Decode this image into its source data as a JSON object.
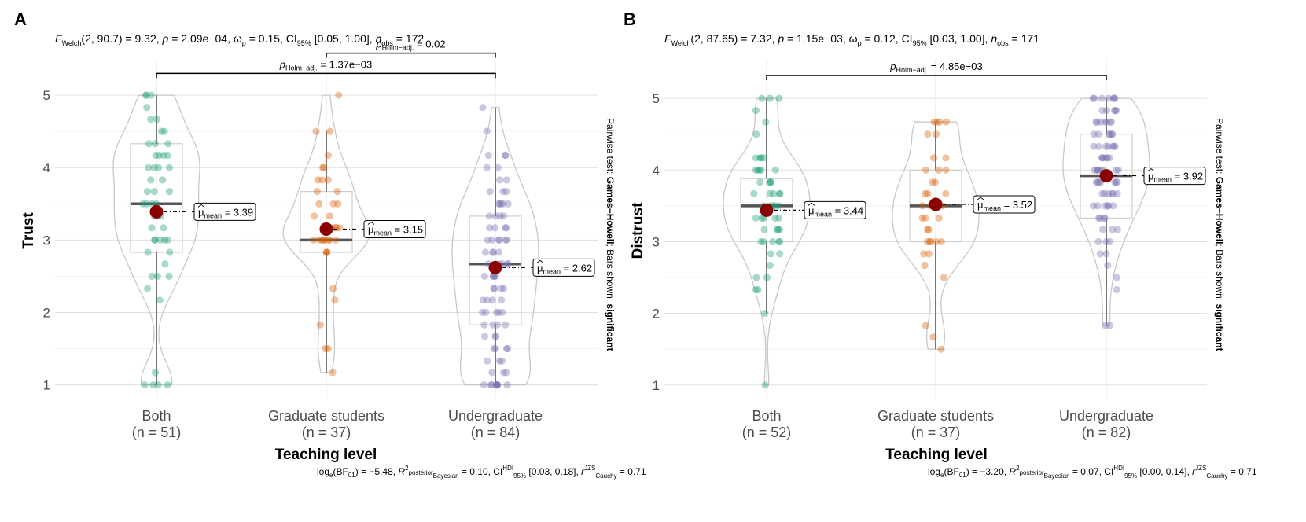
{
  "chart_data": [
    {
      "type": "violin-box-scatter",
      "panel_label": "A",
      "subtitle": {
        "stat": "F",
        "stat_sub": "Welch",
        "rest1": "(2, 90.7) = 9.32, ",
        "p": "p",
        "rest2": " = 2.09e−04, ",
        "omega": "ω",
        "omega_sup": "2",
        "omega_sub": "p",
        "rest3": " = 0.15, CI",
        "ci_sub": "95%",
        "rest4": " [0.05, 1.00], ",
        "n": "n",
        "n_sub": "obs",
        "rest5": " = 172"
      },
      "ylabel": "Trust",
      "xlabel": "Teaching level",
      "ylim": [
        0.8,
        5.5
      ],
      "yticks": [
        1,
        2,
        3,
        4,
        5
      ],
      "groups": [
        {
          "name": "Both",
          "n_label": "(n = 51)",
          "color": "#1b9e77",
          "mean": 3.39,
          "mean_label": "3.39",
          "median": 3.5,
          "q1": 2.83,
          "q3": 4.33,
          "wlo": 1.0,
          "whi": 5.0,
          "points": [
            1,
            1,
            1,
            1,
            1.17,
            2.17,
            2.33,
            2.5,
            2.5,
            2.5,
            2.67,
            2.83,
            2.83,
            3,
            3,
            3,
            3,
            3,
            3.17,
            3.17,
            3.33,
            3.33,
            3.33,
            3.5,
            3.5,
            3.5,
            3.5,
            3.67,
            3.67,
            3.67,
            3.83,
            3.83,
            4,
            4,
            4,
            4,
            4.17,
            4.17,
            4.17,
            4.17,
            4.33,
            4.33,
            4.33,
            4.5,
            4.5,
            4.67,
            4.67,
            4.83,
            5,
            5,
            5
          ]
        },
        {
          "name": "Graduate students",
          "n_label": "(n = 37)",
          "color": "#d95f02",
          "mean": 3.15,
          "mean_label": "3.15",
          "median": 3.0,
          "q1": 2.83,
          "q3": 3.67,
          "wlo": 1.17,
          "whi": 4.5,
          "points": [
            1.17,
            1.5,
            1.5,
            1.83,
            2.17,
            2.33,
            2.83,
            2.83,
            2.83,
            3,
            3,
            3,
            3,
            3,
            3,
            3,
            3,
            3.17,
            3.17,
            3.17,
            3.17,
            3.33,
            3.33,
            3.5,
            3.5,
            3.5,
            3.67,
            3.67,
            3.83,
            3.83,
            3.83,
            4,
            4,
            4.17,
            4.5,
            4.5,
            5
          ]
        },
        {
          "name": "Undergraduate",
          "n_label": "(n = 84)",
          "color": "#7570b3",
          "mean": 2.62,
          "mean_label": "2.62",
          "median": 2.67,
          "q1": 1.83,
          "q3": 3.33,
          "wlo": 1.0,
          "whi": 4.83,
          "points": [
            1,
            1,
            1,
            1,
            1,
            1,
            1,
            1,
            1,
            1.17,
            1.17,
            1.17,
            1.33,
            1.33,
            1.33,
            1.5,
            1.5,
            1.5,
            1.5,
            1.67,
            1.67,
            1.67,
            1.83,
            1.83,
            1.83,
            1.83,
            2,
            2,
            2,
            2,
            2,
            2.17,
            2.17,
            2.17,
            2.17,
            2.33,
            2.33,
            2.33,
            2.33,
            2.5,
            2.5,
            2.5,
            2.5,
            2.5,
            2.67,
            2.67,
            2.67,
            2.67,
            2.67,
            2.83,
            2.83,
            2.83,
            2.83,
            3,
            3,
            3,
            3,
            3,
            3,
            3.17,
            3.17,
            3.17,
            3.17,
            3.33,
            3.33,
            3.33,
            3.33,
            3.5,
            3.5,
            3.5,
            3.5,
            3.67,
            3.67,
            3.67,
            3.83,
            3.83,
            4,
            4,
            4.17,
            4.17,
            4.17,
            4.5,
            4.83,
            3.5
          ]
        }
      ],
      "comparisons": [
        {
          "from": 1,
          "to": 2,
          "p_sym": "p",
          "p_sub": "Holm−adj.",
          "value": " = 0.02",
          "y": 5.58
        },
        {
          "from": 0,
          "to": 2,
          "p_sym": "p",
          "p_sub": "Holm−adj.",
          "value": " = 1.37e−03",
          "y": 5.3
        }
      ],
      "side_note": {
        "pre": "Pairwise test: ",
        "bold1": "Games−Howell",
        "mid": "; Bars shown: ",
        "bold2": "significant"
      },
      "footer": {
        "a": "log",
        "a_sub": "e",
        "b": "(BF",
        "b_sub": "01",
        "c": ") = −5.48, ",
        "r": "R",
        "r_sup": "2",
        "r_sup2": "posterior",
        "r_sub": "Bayesian",
        "d": " = 0.10, CI",
        "d_sup": "HDI",
        "d_sub": "95%",
        "e": " [0.03, 0.18], ",
        "rc": "r",
        "rc_sup": "JZS",
        "rc_sub": "Cauchy",
        "f": " = 0.71"
      },
      "mean_prefix": "μ",
      "mean_sub": "mean"
    },
    {
      "type": "violin-box-scatter",
      "panel_label": "B",
      "subtitle": {
        "stat": "F",
        "stat_sub": "Welch",
        "rest1": "(2, 87.65) = 7.32, ",
        "p": "p",
        "rest2": " = 1.15e−03, ",
        "omega": "ω",
        "omega_sup": "2",
        "omega_sub": "p",
        "rest3": " = 0.12, CI",
        "ci_sub": "95%",
        "rest4": " [0.03, 1.00], ",
        "n": "n",
        "n_sub": "obs",
        "rest5": " = 171"
      },
      "ylabel": "Distrust",
      "xlabel": "Teaching level",
      "ylim": [
        0.8,
        5.55
      ],
      "yticks": [
        1,
        2,
        3,
        4,
        5
      ],
      "groups": [
        {
          "name": "Both",
          "n_label": "(n = 52)",
          "color": "#1b9e77",
          "mean": 3.44,
          "mean_label": "3.44",
          "median": 3.5,
          "q1": 3.0,
          "q3": 3.88,
          "wlo": 2.0,
          "whi": 5.0,
          "points": [
            1,
            2,
            2.33,
            2.33,
            2.5,
            2.5,
            2.67,
            2.83,
            2.83,
            3,
            3,
            3,
            3,
            3,
            3.17,
            3.17,
            3.17,
            3.17,
            3.33,
            3.33,
            3.33,
            3.33,
            3.33,
            3.5,
            3.5,
            3.5,
            3.5,
            3.5,
            3.67,
            3.67,
            3.67,
            3.67,
            3.67,
            3.83,
            3.83,
            3.83,
            3.83,
            4,
            4,
            4,
            4,
            4,
            4.17,
            4.17,
            4.17,
            4.17,
            4.5,
            4.67,
            4.83,
            5,
            5,
            5
          ]
        },
        {
          "name": "Graduate students",
          "n_label": "(n = 37)",
          "color": "#d95f02",
          "mean": 3.52,
          "mean_label": "3.52",
          "median": 3.5,
          "q1": 3.0,
          "q3": 4.0,
          "wlo": 1.5,
          "whi": 4.67,
          "points": [
            1.5,
            1.67,
            1.83,
            2.5,
            2.67,
            2.83,
            2.83,
            3,
            3,
            3,
            3,
            3,
            3.17,
            3.17,
            3.33,
            3.33,
            3.33,
            3.5,
            3.5,
            3.5,
            3.5,
            3.67,
            3.67,
            3.67,
            3.83,
            3.83,
            4,
            4,
            4,
            4.17,
            4.17,
            4.5,
            4.5,
            4.67,
            4.67,
            4.67,
            4.67
          ]
        },
        {
          "name": "Undergraduate",
          "n_label": "(n = 82)",
          "color": "#7570b3",
          "mean": 3.92,
          "mean_label": "3.92",
          "median": 3.92,
          "q1": 3.33,
          "q3": 4.5,
          "wlo": 1.83,
          "whi": 5.0,
          "points": [
            1.83,
            1.83,
            2.33,
            2.5,
            2.67,
            2.83,
            2.83,
            3,
            3,
            3,
            3.17,
            3.17,
            3.17,
            3.33,
            3.33,
            3.33,
            3.33,
            3.5,
            3.5,
            3.5,
            3.5,
            3.5,
            3.67,
            3.67,
            3.67,
            3.67,
            3.67,
            3.83,
            3.83,
            3.83,
            3.83,
            3.83,
            3.83,
            4,
            4,
            4,
            4,
            4,
            4,
            4,
            4.17,
            4.17,
            4.17,
            4.17,
            4.17,
            4.17,
            4.33,
            4.33,
            4.33,
            4.33,
            4.33,
            4.33,
            4.5,
            4.5,
            4.5,
            4.5,
            4.5,
            4.5,
            4.67,
            4.67,
            4.67,
            4.67,
            4.67,
            4.67,
            4.67,
            4.83,
            4.83,
            4.83,
            4.83,
            4.83,
            5,
            5,
            5,
            5,
            5,
            5,
            5,
            3.5,
            3.67,
            4,
            4.33,
            3.83
          ]
        }
      ],
      "comparisons": [
        {
          "from": 0,
          "to": 2,
          "p_sym": "p",
          "p_sub": "Holm−adj.",
          "value": " = 4.85e−03",
          "y": 5.32
        }
      ],
      "side_note": {
        "pre": "Pairwise test: ",
        "bold1": "Games−Howell",
        "mid": "; Bars shown: ",
        "bold2": "significant"
      },
      "footer": {
        "a": "log",
        "a_sub": "e",
        "b": "(BF",
        "b_sub": "01",
        "c": ") = −3.20, ",
        "r": "R",
        "r_sup": "2",
        "r_sup2": "posterior",
        "r_sub": "Bayesian",
        "d": " = 0.07, CI",
        "d_sup": "HDI",
        "d_sub": "95%",
        "e": " [0.00, 0.14], ",
        "rc": "r",
        "rc_sup": "JZS",
        "rc_sub": "Cauchy",
        "f": " = 0.71"
      },
      "mean_prefix": "μ",
      "mean_sub": "mean"
    }
  ]
}
